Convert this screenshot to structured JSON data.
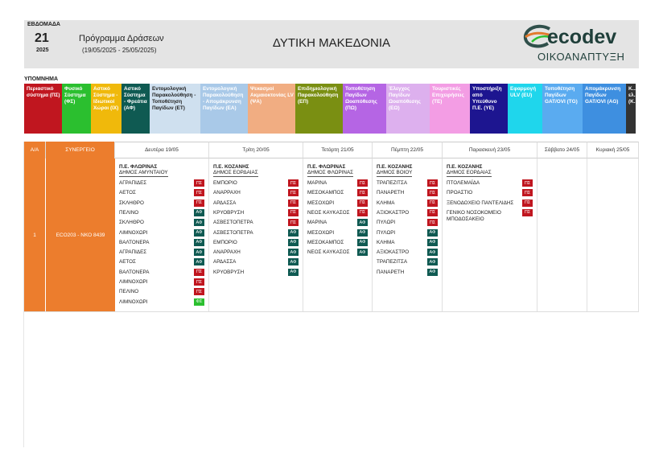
{
  "header": {
    "week_label": "ΕΒΔΟΜΑΔΑ",
    "week_number": "21",
    "year": "2025",
    "program_title": "Πρόγραμμα Δράσεων",
    "program_dates": "(19/05/2025 - 25/05/2025)",
    "region": "ΔΥΤΙΚΗ ΜΑΚΕΔΟΝΙΑ",
    "logo_text": "ecodev",
    "logo_sub": "ΟΙΚΟΑΝΑΠΤΥΞΗ"
  },
  "legend": {
    "title": "ΥΠΟΜΝΗΜΑ",
    "items": [
      {
        "label": "Περιαστικό σύστημα (ΠΣ)",
        "bg": "#c0161f",
        "fg": "#ffffff"
      },
      {
        "label": "Φυσικό Σύστημα (ΦΣ)",
        "bg": "#2bbf2f",
        "fg": "#ffffff"
      },
      {
        "label": "Αστικό Σύστημα - Ιδιωτικοί Χώροι (ΙΧ)",
        "bg": "#f0b90b",
        "fg": "#ffffff"
      },
      {
        "label": "Αστικό Σύστημα - Φρεάτια (ΑΦ)",
        "bg": "#0f5a52",
        "fg": "#ffffff"
      },
      {
        "label": "Εντομολογική Παρακολούθηση - Τοποθέτηση Παγίδων (ΕΤ)",
        "bg": "#cfe0ef",
        "fg": "#222222"
      },
      {
        "label": "Εντομολογική Παρακολούθηση - Απομάκρυνση Παγίδων (ΕΑ)",
        "bg": "#a9c9e8",
        "fg": "#ffffff"
      },
      {
        "label": "Ψεκασμοί Ακμαιοκτονίας LV (ΨΑ)",
        "bg": "#f1ad82",
        "fg": "#ffffff"
      },
      {
        "label": "Επιδημιολογική Παρακολούθηση (ΕΠ)",
        "bg": "#7a8f12",
        "fg": "#ffffff"
      },
      {
        "label": "Τοποθέτηση Παγίδων Ωοαπόθεσης (ΠΩ)",
        "bg": "#b565e4",
        "fg": "#ffffff"
      },
      {
        "label": "Έλεγχος Παγίδων Ωοαπόθεσης (ΕΩ)",
        "bg": "#ddb0ee",
        "fg": "#ffffff"
      },
      {
        "label": "Τουριστικές Επιχειρήσεις (ΤΕ)",
        "bg": "#f39de4",
        "fg": "#ffffff"
      },
      {
        "label": "Υποστήριξη από Υπεύθυνο Π.Ε. (ΥΕ)",
        "bg": "#1d1590",
        "fg": "#ffffff"
      },
      {
        "label": "Εφαρμογή ULV (EU)",
        "bg": "#1fd6ec",
        "fg": "#ffffff"
      },
      {
        "label": "Τοποθέτηση Παγίδων GAT/OVI (TG)",
        "bg": "#5aabf0",
        "fg": "#ffffff"
      },
      {
        "label": "Απομάκρυνση Παγίδων GAT/OVI (AG)",
        "bg": "#3e8fe0",
        "fg": "#ffffff"
      },
      {
        "label": "Κ... ελ... (Κ...",
        "bg": "#333333",
        "fg": "#ffffff"
      }
    ]
  },
  "table": {
    "headers": {
      "aa": "Α/Α",
      "team": "ΣΥΝΕΡΓΕΙΟ",
      "days": [
        "Δευτέρα 19/05",
        "Τρίτη 20/05",
        "Τετάρτη 21/05",
        "Πέμπτη 22/05",
        "Παρασκευή 23/05",
        "Σάββατο 24/05",
        "Κυριακή 25/05"
      ]
    },
    "row": {
      "aa": "1",
      "team": "ECO203 - ΝΚΟ 8439",
      "days": [
        {
          "pe": "Π.Ε. ΦΛΩΡΙΝΑΣ",
          "dimos": "ΔΗΜΟΣ ΑΜΥΝΤΑΙΟΥ",
          "items": [
            {
              "name": "ΑΓΡΑΠΙΔΕΣ",
              "tag": "ΠΣ",
              "type": "PE"
            },
            {
              "name": "ΑΕΤΟΣ",
              "tag": "ΠΣ",
              "type": "PE"
            },
            {
              "name": "ΣΚΛΗΘΡΟ",
              "tag": "ΠΣ",
              "type": "PE"
            },
            {
              "name": "ΠΕΛΙΝΟ",
              "tag": "ΑΦ",
              "type": "AF"
            },
            {
              "name": "ΣΚΛΗΘΡΟ",
              "tag": "ΑΦ",
              "type": "AF"
            },
            {
              "name": "ΛΙΜΝΟΧΩΡΙ",
              "tag": "ΑΦ",
              "type": "AF"
            },
            {
              "name": "ΒΑΛΤΟΝΕΡΑ",
              "tag": "ΑΦ",
              "type": "AF"
            },
            {
              "name": "ΑΓΡΑΠΙΔΕΣ",
              "tag": "ΑΦ",
              "type": "AF"
            },
            {
              "name": "ΑΕΤΟΣ",
              "tag": "ΑΦ",
              "type": "AF"
            },
            {
              "name": "ΒΑΛΤΟΝΕΡΑ",
              "tag": "ΠΣ",
              "type": "PE"
            },
            {
              "name": "ΛΙΜΝΟΧΩΡΙ",
              "tag": "ΠΣ",
              "type": "PE"
            },
            {
              "name": "ΠΕΛΙΝΟ",
              "tag": "ΠΣ",
              "type": "PE"
            },
            {
              "name": "ΛΙΜΝΟΧΩΡΙ",
              "tag": "ΦΣ",
              "type": "FS"
            }
          ]
        },
        {
          "pe": "Π.Ε. ΚΟΖΑΝΗΣ",
          "dimos": "ΔΗΜΟΣ ΕΟΡΔΑΙΑΣ",
          "items": [
            {
              "name": "ΕΜΠΟΡΙΟ",
              "tag": "ΠΣ",
              "type": "PE"
            },
            {
              "name": "ΑΝΑΡΡΑΧΗ",
              "tag": "ΠΣ",
              "type": "PE"
            },
            {
              "name": "ΑΡΔΑΣΣΑ",
              "tag": "ΠΣ",
              "type": "PE"
            },
            {
              "name": "ΚΡΥΟΒΡΥΣΗ",
              "tag": "ΠΣ",
              "type": "PE"
            },
            {
              "name": "ΑΣΒΕΣΤΟΠΕΤΡΑ",
              "tag": "ΠΣ",
              "type": "PE"
            },
            {
              "name": "ΑΣΒΕΣΤΟΠΕΤΡΑ",
              "tag": "ΑΦ",
              "type": "AF"
            },
            {
              "name": "ΕΜΠΟΡΙΟ",
              "tag": "ΑΦ",
              "type": "AF"
            },
            {
              "name": "ΑΝΑΡΡΑΧΗ",
              "tag": "ΑΦ",
              "type": "AF"
            },
            {
              "name": "ΑΡΔΑΣΣΑ",
              "tag": "ΑΦ",
              "type": "AF"
            },
            {
              "name": "ΚΡΥΟΒΡΥΣΗ",
              "tag": "ΑΦ",
              "type": "AF"
            }
          ]
        },
        {
          "pe": "Π.Ε. ΦΛΩΡΙΝΑΣ",
          "dimos": "ΔΗΜΟΣ ΦΛΩΡΙΝΑΣ",
          "items": [
            {
              "name": "ΜΑΡΙΝΑ",
              "tag": "ΠΣ",
              "type": "PE"
            },
            {
              "name": "ΜΕΣΟΚΑΜΠΟΣ",
              "tag": "ΠΣ",
              "type": "PE"
            },
            {
              "name": "ΜΕΣΟΧΩΡΙ",
              "tag": "ΠΣ",
              "type": "PE"
            },
            {
              "name": "ΝΕΟΣ ΚΑΥΚΑΣΟΣ",
              "tag": "ΠΣ",
              "type": "PE"
            },
            {
              "name": "ΜΑΡΙΝΑ",
              "tag": "ΑΦ",
              "type": "AF"
            },
            {
              "name": "ΜΕΣΟΧΩΡΙ",
              "tag": "ΑΦ",
              "type": "AF"
            },
            {
              "name": "ΜΕΣΟΚΑΜΠΟΣ",
              "tag": "ΑΦ",
              "type": "AF"
            },
            {
              "name": "ΝΕΟΣ ΚΑΥΚΑΣΟΣ",
              "tag": "ΑΦ",
              "type": "AF"
            }
          ]
        },
        {
          "pe": "Π.Ε. ΚΟΖΑΝΗΣ",
          "dimos": "ΔΗΜΟΣ ΒΟΙΟΥ",
          "items": [
            {
              "name": "ΤΡΑΠΕΖΙΤΣΑ",
              "tag": "ΠΣ",
              "type": "PE"
            },
            {
              "name": "ΠΑΝΑΡΕΤΗ",
              "tag": "ΠΣ",
              "type": "PE"
            },
            {
              "name": "ΚΛΗΜΑ",
              "tag": "ΠΣ",
              "type": "PE"
            },
            {
              "name": "ΑΞΙΟΚΑΣΤΡΟ",
              "tag": "ΠΣ",
              "type": "PE"
            },
            {
              "name": "ΠΥΛΩΡΙ",
              "tag": "ΠΣ",
              "type": "PE"
            },
            {
              "name": "ΠΥΛΩΡΙ",
              "tag": "ΑΦ",
              "type": "AF"
            },
            {
              "name": "ΚΛΗΜΑ",
              "tag": "ΑΦ",
              "type": "AF"
            },
            {
              "name": "ΑΞΙΟΚΑΣΤΡΟ",
              "tag": "ΑΦ",
              "type": "AF"
            },
            {
              "name": "ΤΡΑΠΕΖΙΤΣΑ",
              "tag": "ΑΦ",
              "type": "AF"
            },
            {
              "name": "ΠΑΝΑΡΕΤΗ",
              "tag": "ΑΦ",
              "type": "AF"
            }
          ]
        },
        {
          "pe": "Π.Ε. ΚΟΖΑΝΗΣ",
          "dimos": "ΔΗΜΟΣ ΕΟΡΔΑΙΑΣ",
          "items": [
            {
              "name": "ΠΤΟΛΕΜΑΪΔΑ",
              "tag": "ΠΣ",
              "type": "PE"
            },
            {
              "name": "ΠΡΟΑΣΤΙΟ",
              "tag": "ΠΣ",
              "type": "PE"
            },
            {
              "name": "ΞΕΝΟΔΟΧΕΙΟ ΠΑΝΤΕΛΙΔΗΣ",
              "tag": "ΠΣ",
              "type": "PE"
            },
            {
              "name": "ΓΕΝΙΚΟ ΝΟΣΟΚΟΜΕΙΟ ΜΠΟΔΟΣΑΚΕΙΟ",
              "tag": "ΠΣ",
              "type": "PE"
            }
          ]
        },
        {
          "pe": "",
          "dimos": "",
          "items": []
        },
        {
          "pe": "",
          "dimos": "",
          "items": []
        }
      ]
    }
  }
}
